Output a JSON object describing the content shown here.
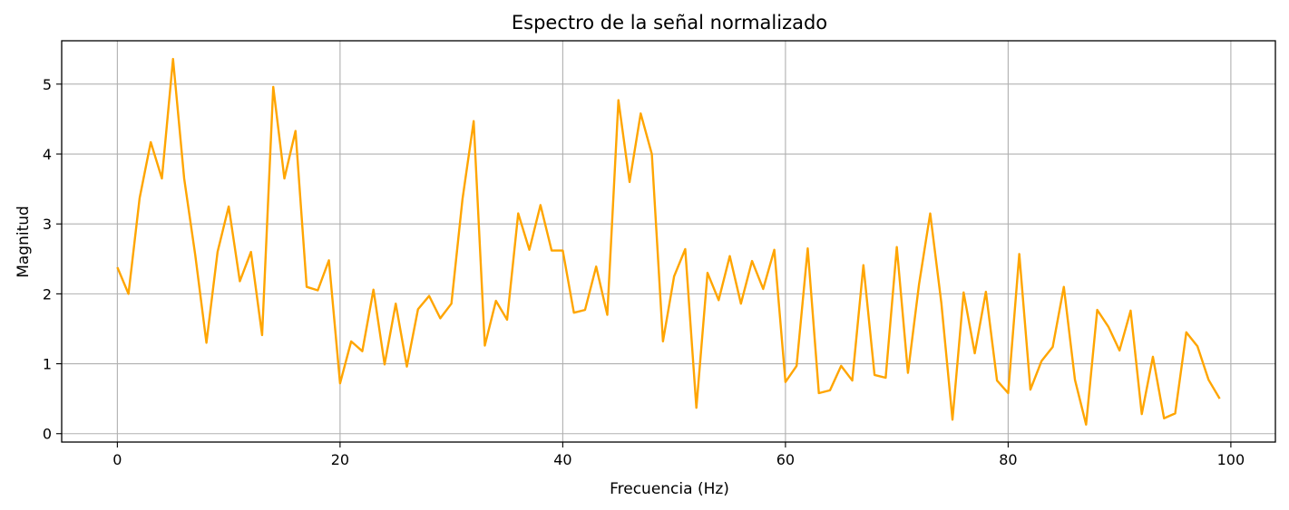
{
  "chart_data": {
    "type": "line",
    "title": "Espectro de la señal normalizado",
    "xlabel": "Frecuencia (Hz)",
    "ylabel": "Magnitud",
    "xlim": [
      -5,
      104
    ],
    "ylim": [
      -0.12,
      5.62
    ],
    "grid": true,
    "legend": "none",
    "x_ticks": [
      0,
      20,
      40,
      60,
      80,
      100
    ],
    "y_ticks": [
      0,
      1,
      2,
      3,
      4,
      5
    ],
    "series": [
      {
        "color": "#ffa500",
        "x": [
          0,
          1,
          2,
          3,
          4,
          5,
          6,
          7,
          8,
          9,
          10,
          11,
          12,
          13,
          14,
          15,
          16,
          17,
          18,
          19,
          20,
          21,
          22,
          23,
          24,
          25,
          26,
          27,
          28,
          29,
          30,
          31,
          32,
          33,
          34,
          35,
          36,
          37,
          38,
          39,
          40,
          41,
          42,
          43,
          44,
          45,
          46,
          47,
          48,
          49,
          50,
          51,
          52,
          53,
          54,
          55,
          56,
          57,
          58,
          59,
          60,
          61,
          62,
          63,
          64,
          65,
          66,
          67,
          68,
          69,
          70,
          71,
          72,
          73,
          74,
          75,
          76,
          77,
          78,
          79,
          80,
          81,
          82,
          83,
          84,
          85,
          86,
          87,
          88,
          89,
          90,
          91,
          92,
          93,
          94,
          95,
          96,
          97,
          98,
          99
        ],
        "values": [
          2.38,
          2.0,
          3.37,
          4.17,
          3.65,
          5.36,
          3.65,
          2.55,
          1.3,
          2.6,
          3.25,
          2.18,
          2.6,
          1.41,
          4.96,
          3.65,
          4.33,
          2.1,
          2.05,
          2.48,
          0.72,
          1.32,
          1.18,
          2.06,
          0.99,
          1.86,
          0.96,
          1.78,
          1.97,
          1.65,
          1.86,
          3.36,
          4.47,
          1.26,
          1.9,
          1.63,
          3.15,
          2.63,
          3.27,
          2.62,
          2.62,
          1.73,
          1.77,
          2.39,
          1.7,
          4.77,
          3.6,
          4.58,
          4.0,
          1.32,
          2.25,
          2.64,
          0.37,
          2.3,
          1.91,
          2.54,
          1.86,
          2.47,
          2.07,
          2.63,
          0.74,
          0.97,
          2.65,
          0.58,
          0.62,
          0.97,
          0.76,
          2.41,
          0.84,
          0.8,
          2.67,
          0.87,
          2.14,
          3.15,
          1.87,
          0.2,
          2.02,
          1.15,
          2.03,
          0.76,
          0.58,
          2.57,
          0.63,
          1.04,
          1.24,
          2.1,
          0.77,
          0.13,
          1.77,
          1.53,
          1.19,
          1.76,
          0.28,
          1.1,
          0.22,
          0.29,
          1.45,
          1.25,
          0.77,
          0.5
        ]
      }
    ]
  }
}
